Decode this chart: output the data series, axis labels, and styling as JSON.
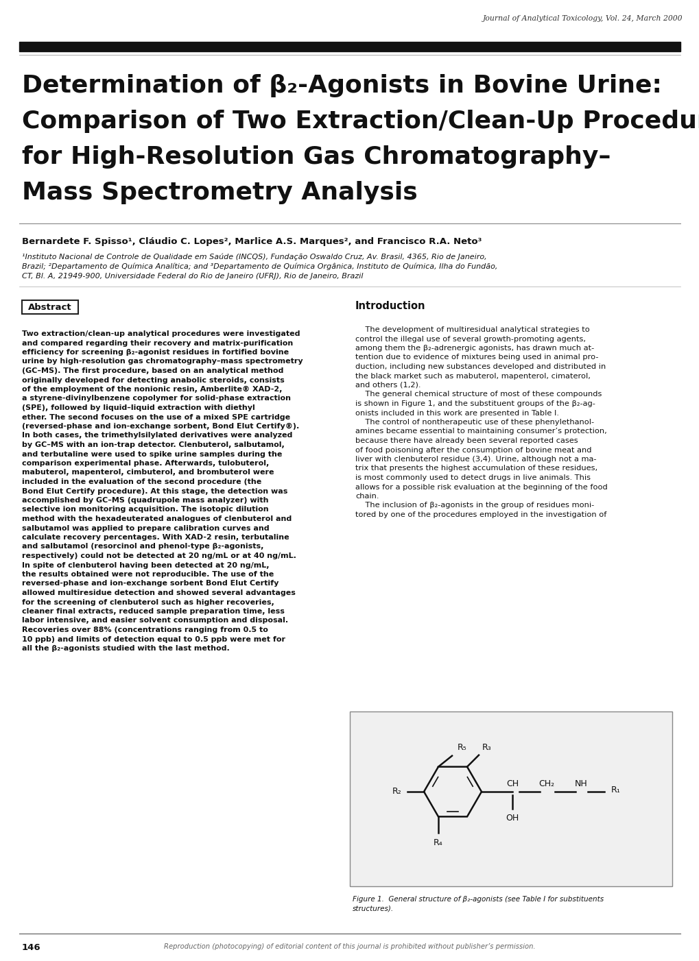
{
  "bg_color": "#ffffff",
  "journal_header": "Journal of Analytical Toxicology, Vol. 24, March 2000",
  "title_line1": "Determination of β₂-Agonists in Bovine Urine:",
  "title_line2": "Comparison of Two Extraction/Clean-Up Procedures",
  "title_line3": "for High-Resolution Gas Chromatography–",
  "title_line4": "Mass Spectrometry Analysis",
  "authors": "Bernardete F. Spisso¹, Cláudio C. Lopes², Marlice A.S. Marques², and Francisco R.A. Neto³",
  "affiliation1": "¹Instituto Nacional de Controle de Qualidade em Saúde (INCQS), Fundação Oswaldo Cruz, Av. Brasil, 4365, Rio de Janeiro,",
  "affiliation2": "Brazil; ²Departamento de Química Analítica; and ³Departamento de Química Orgânica, Instituto de Química, Ilha do Fundão,",
  "affiliation3": "CT, Bl. A, 21949-900, Universidade Federal do Rio de Janeiro (UFRJ), Rio de Janeiro, Brazil",
  "abstract_label": "Abstract",
  "abstract_text_lines": [
    "Two extraction/clean-up analytical procedures were investigated",
    "and compared regarding their recovery and matrix-purification",
    "efficiency for screening β₂-agonist residues in fortified bovine",
    "urine by high-resolution gas chromatography–mass spectrometry",
    "(GC–MS). The first procedure, based on an analytical method",
    "originally developed for detecting anabolic steroids, consists",
    "of the employment of the nonionic resin, Amberlite® XAD-2,",
    "a styrene-divinylbenzene copolymer for solid-phase extraction",
    "(SPE), followed by liquid–liquid extraction with diethyl",
    "ether. The second focuses on the use of a mixed SPE cartridge",
    "(reversed-phase and ion-exchange sorbent, Bond Elut Certify®).",
    "In both cases, the trimethylsilylated derivatives were analyzed",
    "by GC–MS with an ion-trap detector. Clenbuterol, salbutamol,",
    "and terbutaline were used to spike urine samples during the",
    "comparison experimental phase. Afterwards, tulobuterol,",
    "mabuterol, mapenterol, cimbuterol, and brombuterol were",
    "included in the evaluation of the second procedure (the",
    "Bond Elut Certify procedure). At this stage, the detection was",
    "accomplished by GC–MS (quadrupole mass analyzer) with",
    "selective ion monitoring acquisition. The isotopic dilution",
    "method with the hexadeuterated analogues of clenbuterol and",
    "salbutamol was applied to prepare calibration curves and",
    "calculate recovery percentages. With XAD-2 resin, terbutaline",
    "and salbutamol (resorcinol and phenol-type β₂-agonists,",
    "respectively) could not be detected at 20 ng/mL or at 40 ng/mL.",
    "In spite of clenbuterol having been detected at 20 ng/mL,",
    "the results obtained were not reproducible. The use of the",
    "reversed-phase and ion-exchange sorbent Bond Elut Certify",
    "allowed multiresidue detection and showed several advantages",
    "for the screening of clenbuterol such as higher recoveries,",
    "cleaner final extracts, reduced sample preparation time, less",
    "labor intensive, and easier solvent consumption and disposal.",
    "Recoveries over 88% (concentrations ranging from 0.5 to",
    "10 ppb) and limits of detection equal to 0.5 ppb were met for",
    "all the β₂-agonists studied with the last method."
  ],
  "intro_label": "Introduction",
  "intro_text_lines": [
    "    The development of multiresidual analytical strategies to",
    "control the illegal use of several growth-promoting agents,",
    "among them the β₂-adrenergic agonists, has drawn much at-",
    "tention due to evidence of mixtures being used in animal pro-",
    "duction, including new substances developed and distributed in",
    "the black market such as mabuterol, mapenterol, cimaterol,",
    "and others (1,2).",
    "    The general chemical structure of most of these compounds",
    "is shown in Figure 1, and the substituent groups of the β₂-ag-",
    "onists included in this work are presented in Table I.",
    "    The control of nontherapeutic use of these phenylethanol-",
    "amines became essential to maintaining consumer’s protection,",
    "because there have already been several reported cases",
    "of food poisoning after the consumption of bovine meat and",
    "liver with clenbuterol residue (3,4). Urine, although not a ma-",
    "trix that presents the highest accumulation of these residues,",
    "is most commonly used to detect drugs in live animals. This",
    "allows for a possible risk evaluation at the beginning of the food",
    "chain.",
    "    The inclusion of β₂-agonists in the group of residues moni-",
    "tored by one of the procedures employed in the investigation of"
  ],
  "figure_caption_line1": "Figure 1.  General structure of β₂-agonists (see Table I for substituents",
  "figure_caption_line2": "structures).",
  "page_number": "146",
  "footer_text": "Reproduction (photocopying) of editorial content of this journal is prohibited without publisher’s permission.",
  "header_bar_color": "#111111",
  "figure_box_bg": "#f0f0f0"
}
